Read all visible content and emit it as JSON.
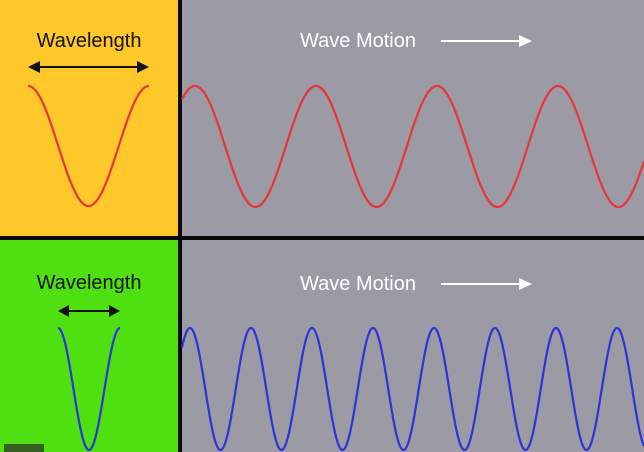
{
  "colors": {
    "divider": "#0a0a0a",
    "top_left_bg": "#fec72a",
    "bottom_left_bg": "#4fe012",
    "motion_bg": "#9c9aa4",
    "top_wave": "#e8353a",
    "bottom_wave": "#2c35d6",
    "arrow_dark": "#111111",
    "arrow_light": "#ffffff"
  },
  "panels": [
    {
      "wavelength_label": "Wavelength",
      "motion_label": "Wave Motion",
      "wave_color_key": "top_wave",
      "cycles_shown": 4
    },
    {
      "wavelength_label": "Wavelength",
      "motion_label": "Wave Motion",
      "wave_color_key": "bottom_wave",
      "cycles_shown": 8
    }
  ],
  "icons": {
    "wavelength_arrow": "double-headed-arrow-icon",
    "motion_arrow": "right-arrow-icon"
  }
}
